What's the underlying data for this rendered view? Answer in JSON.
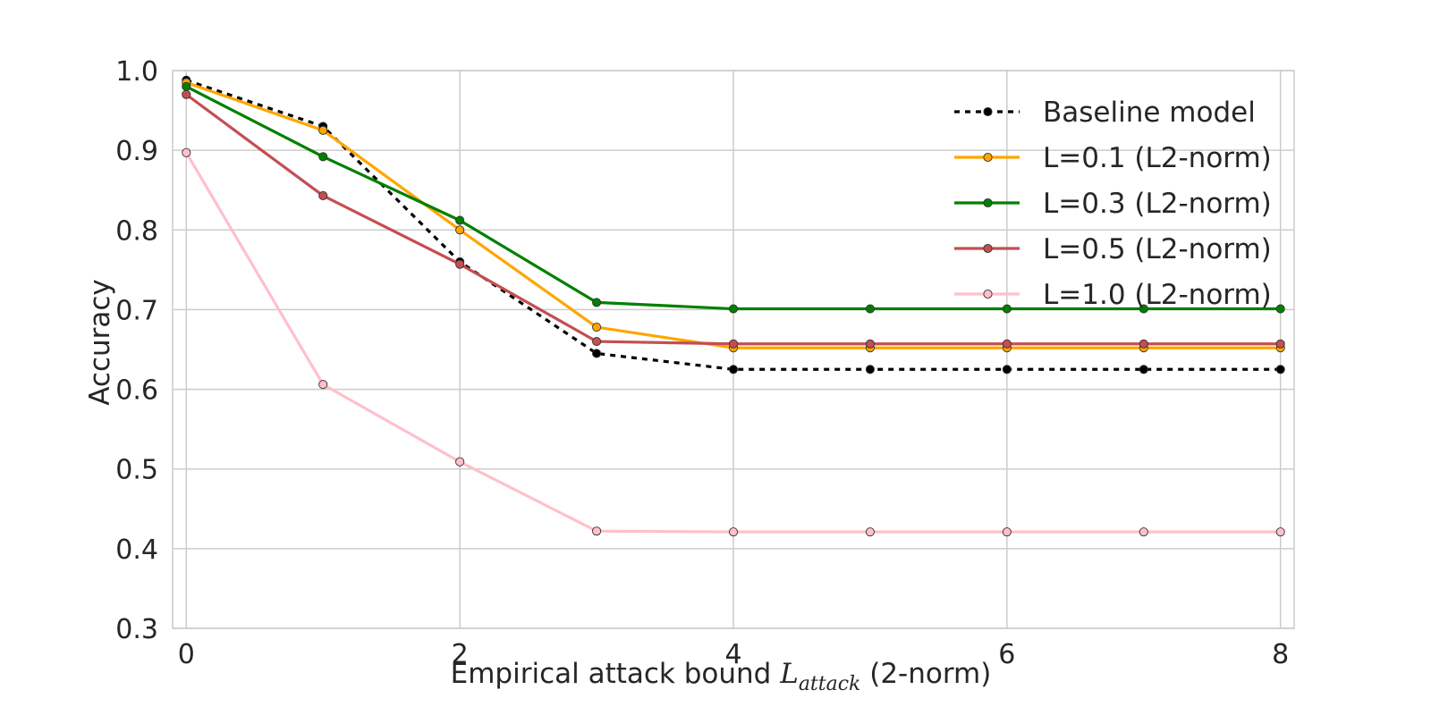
{
  "chart_data": {
    "type": "line",
    "title": "",
    "xlabel": {
      "prefix": "Empirical attack bound ",
      "symbol_main": "L",
      "symbol_sub": "attack",
      "suffix": " (2-norm)"
    },
    "ylabel": "Accuracy",
    "xlim": [
      -0.1,
      8.1
    ],
    "ylim": [
      0.3,
      1.0
    ],
    "x_ticks": [
      "0",
      "2",
      "4",
      "6",
      "8"
    ],
    "y_ticks": [
      "0.3",
      "0.4",
      "0.5",
      "0.6",
      "0.7",
      "0.8",
      "0.9",
      "1.0"
    ],
    "grid": true,
    "legend_position": "top-right",
    "x": [
      0,
      1,
      2,
      3,
      4,
      5,
      6,
      7,
      8
    ],
    "series": [
      {
        "name": "Baseline model",
        "color": "#000000",
        "dashed": true,
        "marker_fill": "#000000",
        "values": [
          0.988,
          0.93,
          0.76,
          0.645,
          0.625,
          0.625,
          0.625,
          0.625,
          0.625
        ]
      },
      {
        "name": "L=0.1 (L2-norm)",
        "color": "#ffa500",
        "dashed": false,
        "marker_fill": "#ffa500",
        "values": [
          0.985,
          0.925,
          0.8,
          0.678,
          0.652,
          0.652,
          0.652,
          0.652,
          0.652
        ]
      },
      {
        "name": "L=0.3 (L2-norm)",
        "color": "#008000",
        "dashed": false,
        "marker_fill": "#008000",
        "values": [
          0.98,
          0.892,
          0.812,
          0.709,
          0.701,
          0.701,
          0.701,
          0.701,
          0.701
        ]
      },
      {
        "name": "L=0.5 (L2-norm)",
        "color": "#c44e52",
        "dashed": false,
        "marker_fill": "#c44e52",
        "values": [
          0.97,
          0.843,
          0.757,
          0.66,
          0.657,
          0.657,
          0.657,
          0.657,
          0.657
        ]
      },
      {
        "name": "L=1.0 (L2-norm)",
        "color": "#ffc0cb",
        "dashed": false,
        "marker_fill": "#ffc0cb",
        "values": [
          0.897,
          0.606,
          0.509,
          0.422,
          0.421,
          0.421,
          0.421,
          0.421,
          0.421
        ]
      }
    ]
  }
}
